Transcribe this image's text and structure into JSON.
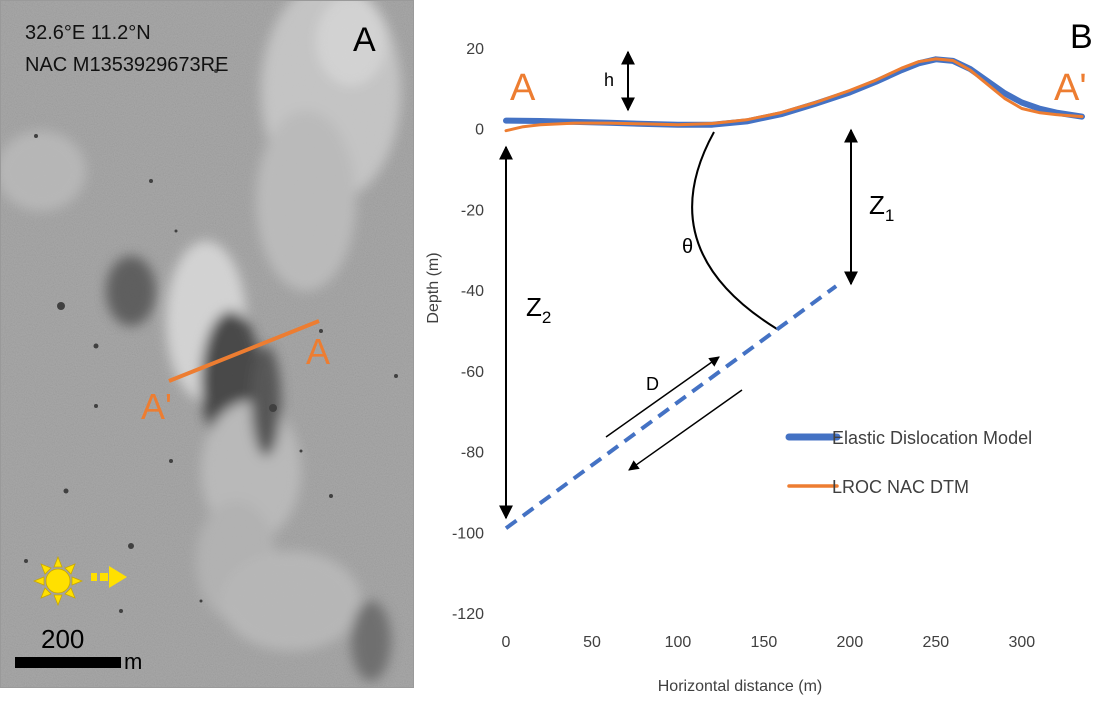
{
  "panel_a": {
    "letter": "A",
    "coords_label": "32.6°E 11.2°N",
    "image_id_label": "NAC M1353929673RE",
    "profile_start": "A",
    "profile_end": "A'",
    "scale_value": "200",
    "scale_unit": "m",
    "colors": {
      "profile": "#ED7D31",
      "sun": "#FFE000",
      "sun_arrow": "#FFE000"
    },
    "icons": [
      "sun-icon",
      "arrow-right-icon"
    ]
  },
  "panel_b": {
    "letter": "B",
    "profile_start": "A",
    "profile_end": "A'",
    "labels": {
      "h": "h",
      "theta": "θ",
      "d": "D",
      "z1": "Z",
      "z1_sub": "1",
      "z2": "Z",
      "z2_sub": "2"
    }
  },
  "chart_data": {
    "type": "line",
    "xlabel": "Horizontal distance (m)",
    "ylabel": "Depth (m)",
    "xlim": [
      0,
      335
    ],
    "ylim": [
      -120,
      20
    ],
    "xticks": [
      0,
      50,
      100,
      150,
      200,
      250,
      300
    ],
    "yticks": [
      20,
      0,
      -20,
      -40,
      -60,
      -80,
      -100,
      -120
    ],
    "grid": false,
    "legend_position": "bottom-right",
    "series": [
      {
        "name": "Elastic Dislocation Model",
        "color": "#4472C4",
        "x": [
          0,
          20,
          40,
          60,
          80,
          100,
          120,
          140,
          160,
          180,
          200,
          215,
          230,
          240,
          250,
          260,
          270,
          280,
          290,
          300,
          310,
          320,
          335
        ],
        "y": [
          2.0,
          1.9,
          1.7,
          1.5,
          1.2,
          1.0,
          1.0,
          1.8,
          3.6,
          6.2,
          9.0,
          11.6,
          14.5,
          16.2,
          17.2,
          16.8,
          14.8,
          11.8,
          8.8,
          6.5,
          5.0,
          4.0,
          3.0
        ]
      },
      {
        "name": "LROC NAC DTM",
        "color": "#ED7D31",
        "x": [
          0,
          10,
          20,
          40,
          60,
          80,
          100,
          120,
          140,
          160,
          180,
          200,
          215,
          230,
          240,
          250,
          260,
          270,
          280,
          290,
          300,
          310,
          320,
          335
        ],
        "y": [
          -0.5,
          0.5,
          1.0,
          1.4,
          1.4,
          1.2,
          1.0,
          1.3,
          2.2,
          4.0,
          6.5,
          9.5,
          12.0,
          15.0,
          16.6,
          17.3,
          16.9,
          14.5,
          11.0,
          7.5,
          5.0,
          4.0,
          3.5,
          3.0
        ]
      }
    ],
    "fault": {
      "name": "fault",
      "color": "#4472C4",
      "x": [
        0,
        192
      ],
      "y": [
        -99,
        -39
      ]
    }
  }
}
